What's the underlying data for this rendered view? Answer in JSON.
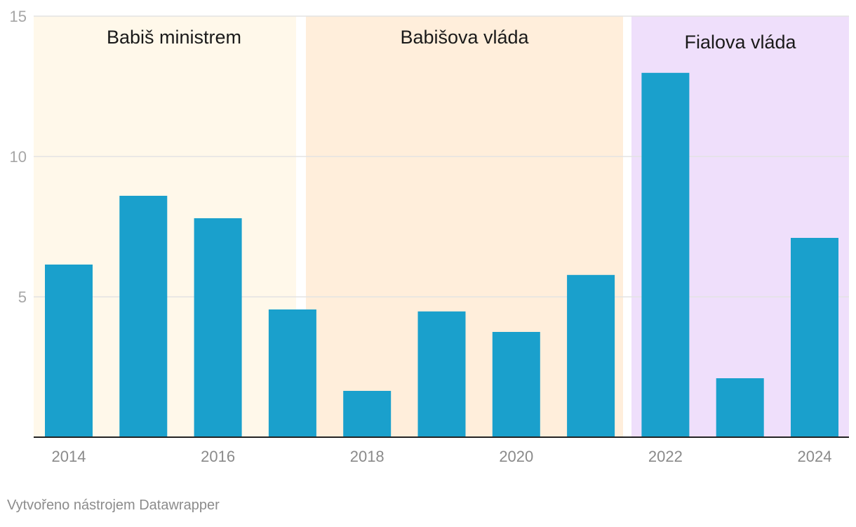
{
  "chart_data": {
    "type": "bar",
    "categories": [
      "2014",
      "2015",
      "2016",
      "2017",
      "2018",
      "2019",
      "2020",
      "2021",
      "2022",
      "2023",
      "2024"
    ],
    "values": [
      6.15,
      8.6,
      7.8,
      4.55,
      1.65,
      4.48,
      3.75,
      5.78,
      12.98,
      2.1,
      7.1
    ],
    "ylim": [
      0,
      15
    ],
    "y_ticks": [
      "5",
      "10",
      "15"
    ],
    "x_tick_labels": [
      "2014",
      "2016",
      "2018",
      "2020",
      "2022",
      "2024"
    ],
    "grid": true,
    "bar_color": "#1aa0cc",
    "periods": [
      {
        "label": "Babiš ministrem",
        "start": "2014",
        "end": "2017",
        "color": "#fff8ea"
      },
      {
        "label": "Babišova vláda",
        "start": "2017",
        "end": "2021",
        "color": "#ffeedb"
      },
      {
        "label": "Fialova vláda",
        "start": "2022",
        "end": "2024",
        "color": "#efdffb"
      }
    ],
    "title": "",
    "xlabel": "",
    "ylabel": ""
  },
  "footer": {
    "credit": "Vytvořeno nástrojem Datawrapper"
  }
}
